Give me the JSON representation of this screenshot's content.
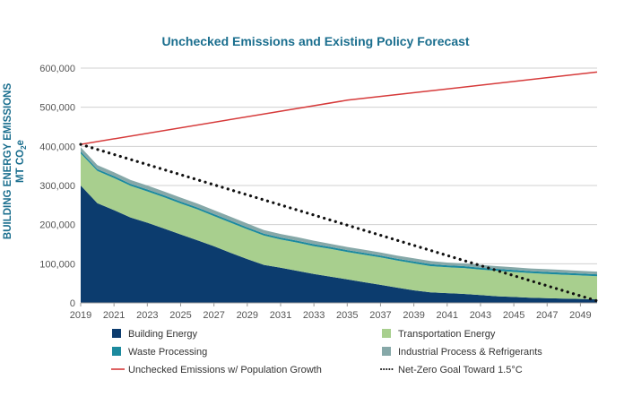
{
  "chart_data": {
    "type": "area",
    "title": "Unchecked Emissions and Existing Policy Forecast",
    "ylabel_line1": "BUILDING ENERGY EMISSIONS",
    "ylabel_line2_main": "MT CO",
    "ylabel_line2_sub1": "2",
    "ylabel_line2_sub2": "e",
    "ylim": [
      0,
      600000
    ],
    "xlim": [
      2019,
      2050
    ],
    "y_ticks": [
      0,
      100000,
      200000,
      300000,
      400000,
      500000,
      600000
    ],
    "y_tick_labels": [
      "0",
      "100,000",
      "200,000",
      "300,000",
      "400,000",
      "500,000",
      "600,000"
    ],
    "x_ticks": [
      2019,
      2021,
      2023,
      2025,
      2027,
      2029,
      2031,
      2033,
      2035,
      2037,
      2039,
      2041,
      2043,
      2045,
      2047,
      2049
    ],
    "x_tick_labels": [
      "2019",
      "2021",
      "2023",
      "2025",
      "2027",
      "2029",
      "2031",
      "2033",
      "2035",
      "2037",
      "2039",
      "2041",
      "2043",
      "2045",
      "2047",
      "2049"
    ],
    "grid": "horizontal",
    "legend_position": "bottom",
    "x": [
      2019,
      2020,
      2021,
      2022,
      2023,
      2024,
      2025,
      2026,
      2027,
      2028,
      2029,
      2030,
      2031,
      2032,
      2033,
      2034,
      2035,
      2036,
      2037,
      2038,
      2039,
      2040,
      2041,
      2042,
      2043,
      2044,
      2045,
      2046,
      2047,
      2048,
      2049,
      2050
    ],
    "stacked_series": [
      {
        "name": "Building Energy",
        "color": "#0c3c6e",
        "values": [
          300000,
          255000,
          237000,
          218000,
          205000,
          190000,
          175000,
          160000,
          145000,
          128000,
          112000,
          97000,
          90000,
          82000,
          74000,
          67000,
          60000,
          53000,
          46000,
          39000,
          32000,
          27000,
          25000,
          23000,
          20000,
          17000,
          15000,
          13000,
          12000,
          11000,
          10000,
          9000
        ]
      },
      {
        "name": "Transportation Energy",
        "color": "#a8cf8e",
        "values": [
          82000,
          82000,
          82000,
          81000,
          80000,
          80000,
          79000,
          79000,
          77000,
          77000,
          76000,
          75000,
          72000,
          72000,
          71000,
          71000,
          70000,
          70000,
          70000,
          69000,
          69000,
          67000,
          66000,
          66000,
          65000,
          65000,
          64000,
          63000,
          62000,
          61000,
          60000,
          59000
        ]
      },
      {
        "name": "Waste Processing",
        "color": "#1c8a9e",
        "values": [
          5000,
          5000,
          5000,
          5000,
          5000,
          5000,
          5000,
          5000,
          5000,
          5000,
          5000,
          5000,
          5000,
          5000,
          5000,
          5000,
          5000,
          5000,
          5000,
          5000,
          5000,
          5000,
          5000,
          5000,
          5000,
          5000,
          5000,
          5000,
          5000,
          5000,
          5000,
          5000
        ]
      },
      {
        "name": "Industrial Process & Refrigerants",
        "color": "#86a8a8",
        "values": [
          11000,
          10000,
          10000,
          10000,
          10000,
          10000,
          10000,
          10000,
          10000,
          10000,
          10000,
          9000,
          9000,
          9000,
          9000,
          8000,
          8000,
          8000,
          8000,
          8000,
          8000,
          8000,
          7000,
          7000,
          7000,
          7000,
          7000,
          7000,
          7000,
          7000,
          7000,
          7000
        ]
      }
    ],
    "line_series": [
      {
        "name": "Unchecked Emissions w/ Population Growth",
        "color": "#d63a3a",
        "style": "solid",
        "x": [
          2019,
          2035,
          2050
        ],
        "values": [
          405000,
          518000,
          590000
        ]
      },
      {
        "name": "Net-Zero Goal Toward 1.5°C",
        "color": "#111111",
        "style": "dotted",
        "x": [
          2019,
          2050
        ],
        "values": [
          405000,
          5000
        ]
      }
    ],
    "legend": [
      {
        "label": "Building Energy",
        "kind": "box",
        "color": "#0c3c6e"
      },
      {
        "label": "Transportation Energy",
        "kind": "box",
        "color": "#a8cf8e"
      },
      {
        "label": "Waste Processing",
        "kind": "box",
        "color": "#1c8a9e"
      },
      {
        "label": "Industrial Process & Refrigerants",
        "kind": "box",
        "color": "#86a8a8"
      },
      {
        "label": "Unchecked Emissions w/ Population Growth",
        "kind": "line",
        "color": "#d63a3a"
      },
      {
        "label": "Net-Zero Goal Toward 1.5°C",
        "kind": "dots",
        "color": "#111111"
      }
    ]
  }
}
